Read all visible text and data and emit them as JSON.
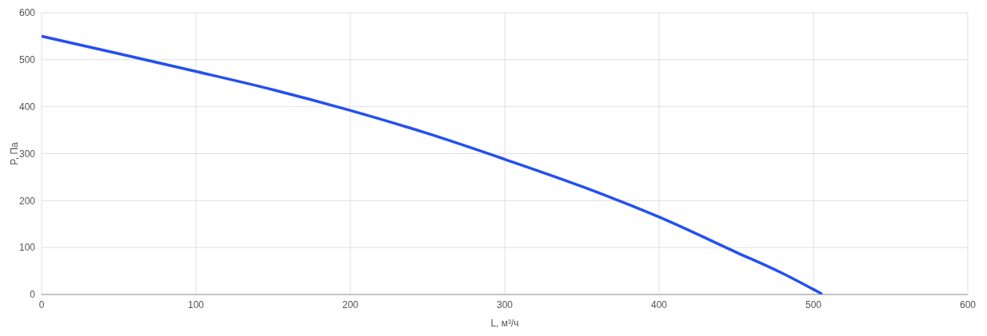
{
  "chart_data": {
    "type": "line",
    "xlabel": "L, м³/ч",
    "ylabel": "P, Па",
    "series": [
      {
        "color": "#2450f0",
        "x": [
          0,
          50,
          100,
          150,
          200,
          250,
          300,
          350,
          400,
          450,
          480,
          505
        ],
        "values": [
          550,
          513,
          475,
          436,
          392,
          343,
          288,
          230,
          165,
          90,
          45,
          2
        ]
      }
    ],
    "xlim": [
      0,
      600
    ],
    "xticks": [
      0,
      100,
      200,
      300,
      400,
      500,
      600
    ],
    "ylim": [
      0,
      600
    ],
    "yticks": [
      0,
      100,
      200,
      300,
      400,
      500,
      600
    ],
    "grid": true,
    "marker": "none",
    "line_style": "solid"
  }
}
